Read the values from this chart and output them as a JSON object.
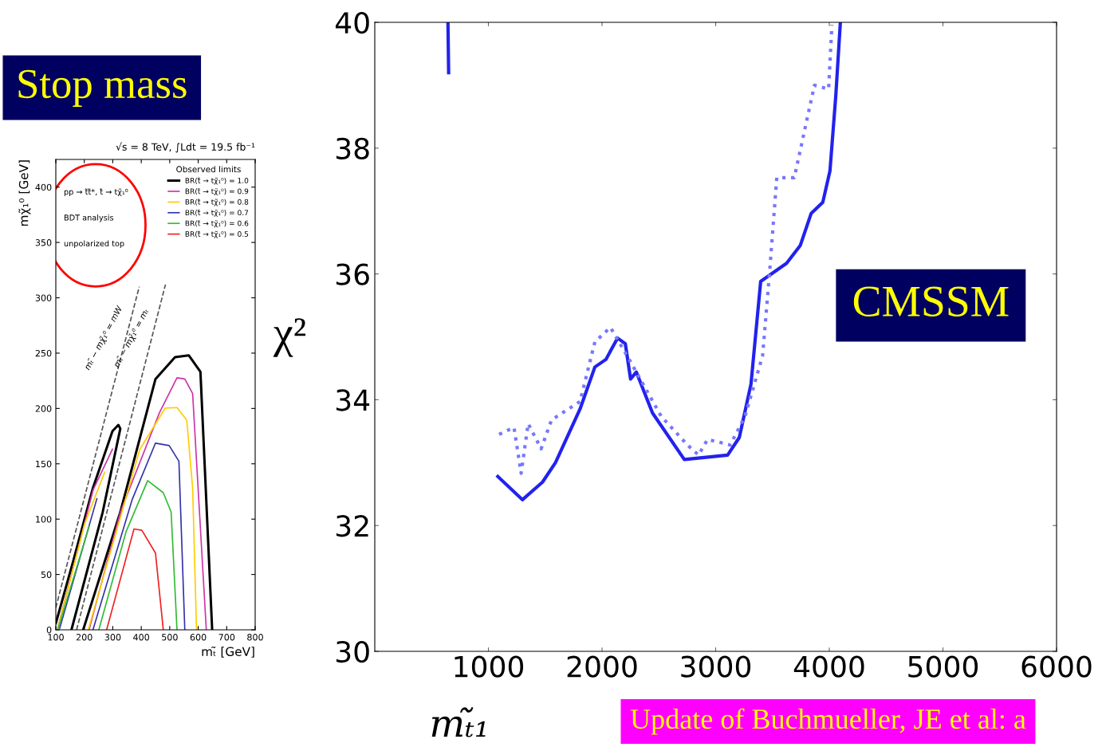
{
  "chart_data": [
    {
      "type": "line",
      "title": "CMSSM",
      "xlabel": "mₜ̃₁",
      "ylabel": "χ²",
      "xlim": [
        0,
        6000
      ],
      "xticks": [
        1000,
        2000,
        3000,
        4000,
        5000,
        6000
      ],
      "ylim": [
        30,
        40
      ],
      "yticks": [
        30,
        32,
        34,
        36,
        38,
        40
      ],
      "series": [
        {
          "color": "#2222ee",
          "line_style": "solid",
          "x": [
            644,
            650,
            1000,
            1083,
            1299,
            1476,
            1590,
            1806,
            1937,
            2034,
            2137,
            2205,
            2251,
            2302,
            2444,
            2724,
            3105,
            3208,
            3311,
            3396,
            3624,
            3744,
            3840,
            3943,
            4006,
            4057,
            4097
          ],
          "values": [
            40,
            39.2,
            null,
            32.78,
            32.41,
            32.69,
            33.0,
            33.85,
            34.52,
            34.64,
            34.98,
            34.89,
            34.33,
            34.44,
            33.79,
            33.05,
            33.12,
            33.4,
            34.25,
            35.88,
            36.17,
            36.45,
            36.96,
            37.14,
            37.64,
            38.83,
            39.99
          ]
        },
        {
          "color": "#7777ff",
          "line_style": "dotted",
          "x": [
            1094,
            1225,
            1288,
            1350,
            1464,
            1556,
            1806,
            1937,
            2074,
            2239,
            2519,
            2752,
            2849,
            2929,
            3128,
            3259,
            3413,
            3476,
            3538,
            3692,
            3869,
            3994,
            4023
          ],
          "values": [
            33.45,
            33.56,
            32.83,
            33.62,
            33.22,
            33.68,
            33.97,
            34.92,
            35.15,
            34.64,
            33.74,
            33.28,
            33.12,
            33.37,
            33.28,
            33.74,
            34.7,
            36.06,
            37.53,
            37.53,
            39.0,
            38.94,
            39.96
          ]
        }
      ],
      "annotations": [
        "Update of Buchmueller, JE et al: a"
      ]
    },
    {
      "type": "line",
      "title": "Stop mass",
      "xlabel": "mₜ̃ [GeV]",
      "ylabel": "mχ̃₁⁰ [GeV]",
      "xlim": [
        100,
        800
      ],
      "xticks": [
        100,
        200,
        300,
        400,
        500,
        600,
        700,
        800
      ],
      "ylim": [
        0,
        425
      ],
      "yticks": [
        0,
        50,
        100,
        150,
        200,
        250,
        300,
        350,
        400
      ],
      "legend": "top right",
      "legend_title": "Observed limits",
      "series": [
        {
          "name": "BR(t̃ → tχ̃₁⁰) = 1.0",
          "color": "#000000",
          "x": [
            100,
            161.8,
            230.4,
            299,
            319.6,
            326.5,
            264.7,
            154.9,
            180,
            196.1,
            326.5,
            450,
            518.6,
            566.7,
            607.8,
            649
          ],
          "values": [
            5.9,
            62.7,
            128.3,
            179.6,
            185.1,
            181.8,
            106.4,
            0,
            null,
            0,
            106.4,
            226.6,
            246.3,
            248,
            233.1,
            0
          ]
        },
        {
          "name": "BR(t̃ → tχ̃₁⁰) = 0.9",
          "color": "#cc33aa",
          "x": [
            106.9,
            230.4,
            299,
            260,
            216.7,
            326.5,
            463.7,
            525.5,
            552.9,
            580.4,
            628.4
          ],
          "values": [
            1.5,
            126.1,
            163.2,
            null,
            0,
            106.4,
            196,
            227.7,
            226.6,
            213.5,
            0
          ]
        },
        {
          "name": "BR(t̃ → tχ̃₁⁰) = 0.8",
          "color": "#ffcc00",
          "x": [
            106.9,
            201,
            271.6,
            240,
            213.9,
            395.1,
            484.3,
            525.5,
            559.8,
            580.4,
            594.1
          ],
          "values": [
            1.5,
            95.5,
            142.5,
            null,
            0,
            163.2,
            200.4,
            200.8,
            189.4,
            128.3,
            0
          ]
        },
        {
          "name": "BR(t̃ → tχ̃₁⁰) = 0.7",
          "color": "#3333aa",
          "x": [
            113.7,
            244.1,
            240,
            230.4,
            367.6,
            450,
            498,
            532.3,
            552.9
          ],
          "values": [
            1.5,
            118.4,
            null,
            0,
            117.3,
            168.7,
            166.5,
            152.3,
            0
          ]
        },
        {
          "name": "BR(t̃ → tχ̃₁⁰) = 0.6",
          "color": "#33bb33",
          "x": [
            106.9,
            216.7,
            240,
            251,
            347,
            422.5,
            477.4,
            504.9,
            525.5
          ],
          "values": [
            0,
            93.3,
            null,
            0,
            88.9,
            134.8,
            123.9,
            106.4,
            0
          ]
        },
        {
          "name": "BR(t̃ → tχ̃₁⁰) = 0.5",
          "color": "#ee2222",
          "x": [
            278.4,
            374.5,
            402,
            450,
            477.4
          ],
          "values": [
            0,
            91.1,
            90,
            69.3,
            0
          ]
        },
        {
          "color": "#555555",
          "line_style": "dashed",
          "x": [
            100,
            393
          ],
          "values": [
            20,
            310
          ]
        },
        {
          "color": "#555555",
          "line_style": "dashed",
          "x": [
            173,
            485
          ],
          "values": [
            0,
            312
          ]
        }
      ],
      "annotations": [
        "√s = 8 TeV, ∫Ldt = 19.5 fb⁻¹",
        "pp → t̃t̃*, t̃ → tχ̃₁⁰",
        "BDT analysis",
        "unpolarized top",
        "mₜ̃ − mχ̃₁⁰ = mW",
        "mₜ̃ − mχ̃₁⁰ = mₜ"
      ]
    }
  ]
}
